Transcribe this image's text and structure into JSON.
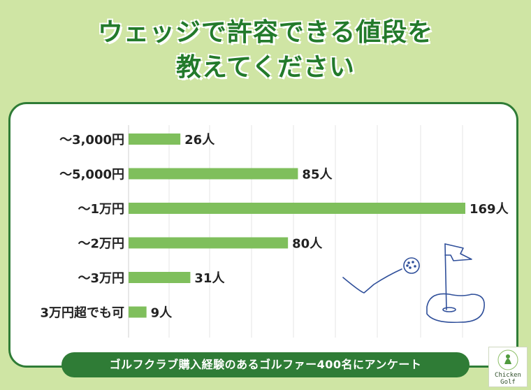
{
  "title_line1": "ウェッジで許容できる値段を",
  "title_line2": "教えてください",
  "banner": "ゴルフクラブ購入経験のあるゴルファー400名にアンケート",
  "logo_text_1": "Chicken",
  "logo_text_2": "Golf",
  "colors": {
    "bar": "#7fbf5c",
    "accent": "#2f7c36",
    "background": "#cfe5a4"
  },
  "chart_data": {
    "type": "bar",
    "orientation": "horizontal",
    "categories": [
      "～3,000円",
      "～5,000円",
      "～1万円",
      "～2万円",
      "～3万円",
      "3万円超でも可"
    ],
    "values": [
      26,
      85,
      169,
      80,
      31,
      9
    ],
    "value_labels": [
      "26人",
      "85人",
      "169人",
      "80人",
      "31人",
      "9人"
    ],
    "unit": "人",
    "xlim": [
      0,
      169
    ],
    "grid": true
  }
}
